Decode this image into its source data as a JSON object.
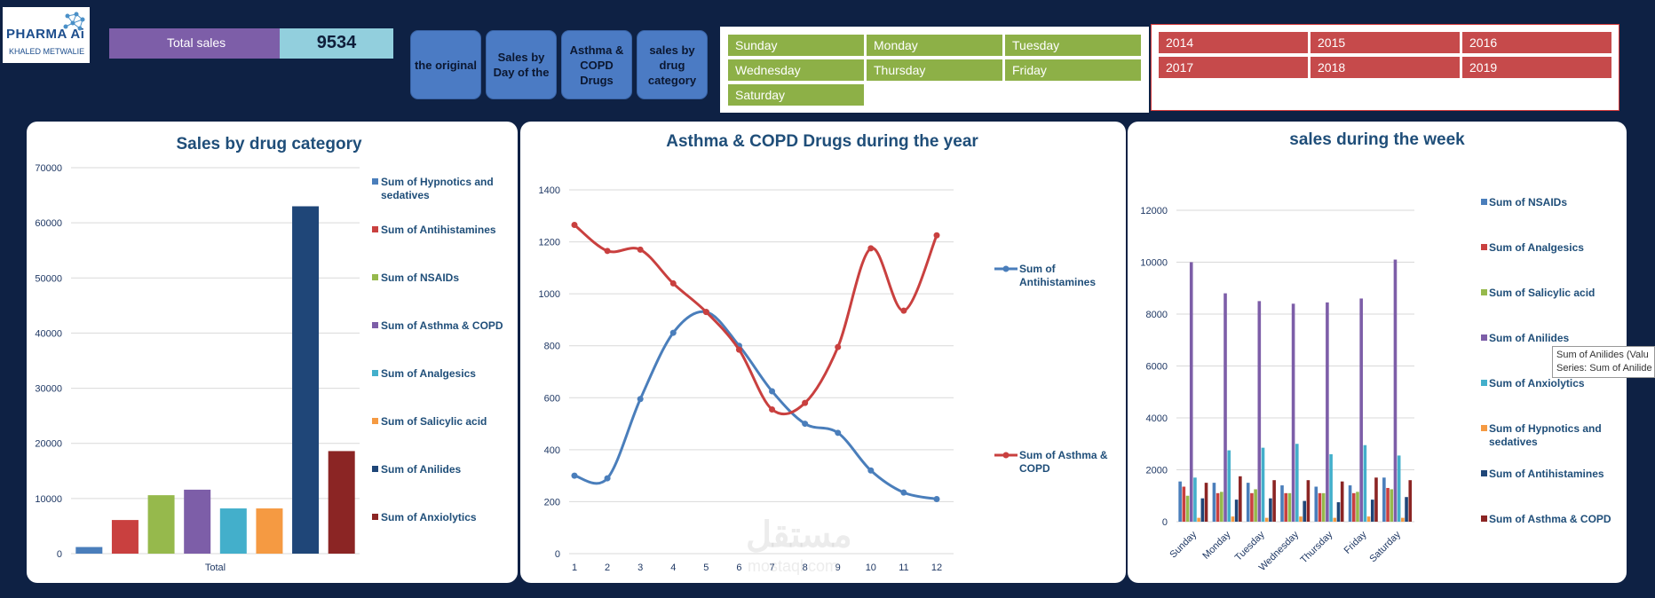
{
  "logo": {
    "brand": "PHARMA Ai",
    "author": "KHALED METWALIE"
  },
  "kpi": {
    "label": "Total sales",
    "value": "9534"
  },
  "nav": [
    {
      "label": "the original"
    },
    {
      "label": "Sales by Day of the"
    },
    {
      "label": "Asthma & COPD Drugs"
    },
    {
      "label": "sales by drug category"
    }
  ],
  "days": [
    "Sunday",
    "Monday",
    "Tuesday",
    "Wednesday",
    "Thursday",
    "Friday",
    "Saturday"
  ],
  "years": [
    "2014",
    "2015",
    "2016",
    "2017",
    "2018",
    "2019"
  ],
  "colors": {
    "background": "#0e2144",
    "accent_blue": "#4b7bc4",
    "slicer_green": "#8db047",
    "slicer_red": "#c64a4b",
    "kpi_purple": "#7d5ea8",
    "kpi_teal": "#92cfdd"
  },
  "tooltip": {
    "line1": "Sum of Anilides (Valu",
    "line2": "Series: Sum of Anilide"
  },
  "watermark": {
    "arabic": "مستقل",
    "latin": "mostaql.com"
  },
  "chart_data": [
    {
      "type": "bar",
      "title": "Sales by drug category",
      "categories": [
        "Total"
      ],
      "ylim": [
        0,
        70000
      ],
      "yticks": [
        0,
        10000,
        20000,
        30000,
        40000,
        50000,
        60000,
        70000
      ],
      "grid": true,
      "legend_position": "right",
      "series": [
        {
          "name": "Sum of Hypnotics and sedatives",
          "values": [
            1200
          ],
          "color": "#4a7ebb"
        },
        {
          "name": "Sum of Antihistamines",
          "values": [
            6100
          ],
          "color": "#c9403f"
        },
        {
          "name": "Sum of NSAIDs",
          "values": [
            10600
          ],
          "color": "#96b94c"
        },
        {
          "name": "Sum of Asthma & COPD",
          "values": [
            11600
          ],
          "color": "#7d5ea8"
        },
        {
          "name": "Sum of Analgesics",
          "values": [
            8200
          ],
          "color": "#43afcb"
        },
        {
          "name": "Sum of Salicylic acid",
          "values": [
            8200
          ],
          "color": "#f59a42"
        },
        {
          "name": "Sum of Anilides",
          "values": [
            63000
          ],
          "color": "#1f4678"
        },
        {
          "name": "Sum of Anxiolytics",
          "values": [
            18600
          ],
          "color": "#8b2524"
        }
      ]
    },
    {
      "type": "line",
      "title": "Asthma & COPD Drugs during the year",
      "x": [
        1,
        2,
        3,
        4,
        5,
        6,
        7,
        8,
        9,
        10,
        11,
        12
      ],
      "ylim": [
        0,
        1400
      ],
      "yticks": [
        0,
        200,
        400,
        600,
        800,
        1000,
        1200,
        1400
      ],
      "grid": true,
      "legend_position": "right",
      "series": [
        {
          "name": "Sum of Antihistamines",
          "values": [
            300,
            290,
            595,
            850,
            930,
            800,
            625,
            500,
            465,
            320,
            235,
            210
          ],
          "color": "#4a7ebb"
        },
        {
          "name": "Sum of Asthma & COPD",
          "values": [
            1265,
            1165,
            1170,
            1040,
            930,
            785,
            555,
            580,
            795,
            1175,
            935,
            1225
          ],
          "color": "#c9403f"
        }
      ]
    },
    {
      "type": "bar",
      "title": "sales during the week",
      "categories": [
        "Sunday",
        "Monday",
        "Tuesday",
        "Wednesday",
        "Thursday",
        "Friday",
        "Saturday"
      ],
      "ylim": [
        0,
        12000
      ],
      "yticks": [
        0,
        2000,
        4000,
        6000,
        8000,
        10000,
        12000
      ],
      "grid": true,
      "legend_position": "right",
      "series": [
        {
          "name": "Sum of NSAIDs",
          "values": [
            1550,
            1500,
            1500,
            1400,
            1350,
            1400,
            1700
          ],
          "color": "#4a7ebb"
        },
        {
          "name": "Sum of Analgesics",
          "values": [
            1350,
            1100,
            1100,
            1100,
            1100,
            1100,
            1300
          ],
          "color": "#c9403f"
        },
        {
          "name": "Sum of Salicylic acid",
          "values": [
            1000,
            1150,
            1250,
            1100,
            1100,
            1150,
            1250
          ],
          "color": "#96b94c"
        },
        {
          "name": "Sum of Anilides",
          "values": [
            10000,
            8800,
            8500,
            8400,
            8450,
            8600,
            10100
          ],
          "color": "#7d5ea8"
        },
        {
          "name": "Sum of Anxiolytics",
          "values": [
            1700,
            2750,
            2850,
            3000,
            2600,
            2950,
            2550
          ],
          "color": "#43afcb"
        },
        {
          "name": "Sum of Hypnotics and sedatives",
          "values": [
            150,
            200,
            150,
            200,
            150,
            200,
            150
          ],
          "color": "#f59a42"
        },
        {
          "name": "Sum of Antihistamines",
          "values": [
            900,
            850,
            900,
            800,
            750,
            850,
            950
          ],
          "color": "#1f4678"
        },
        {
          "name": "Sum of Asthma & COPD",
          "values": [
            1500,
            1750,
            1600,
            1600,
            1550,
            1700,
            1600
          ],
          "color": "#8b2524"
        }
      ]
    }
  ]
}
